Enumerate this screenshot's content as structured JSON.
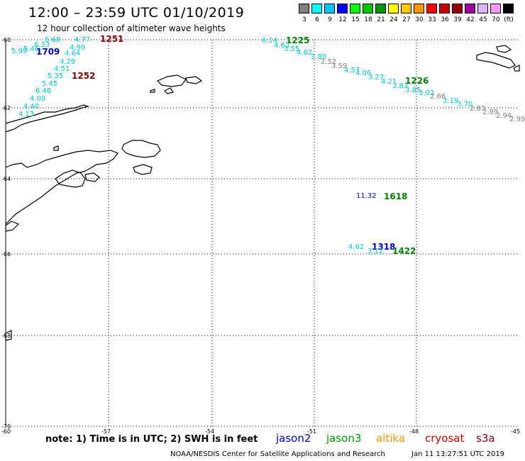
{
  "title": "12:00 – 23:59 UTC 01/10/2019",
  "subtitle": "12 hour collection of altimeter wave heights",
  "scale": {
    "colors": [
      "#808080",
      "#00ffff",
      "#00c8ff",
      "#0000ff",
      "#00ff00",
      "#00c800",
      "#009600",
      "#ffff00",
      "#ffc800",
      "#ff9600",
      "#ff0000",
      "#c80000",
      "#960000",
      "#a000a0",
      "#dcb4ff",
      "#ff96ff",
      "#000000"
    ],
    "labels": [
      "3",
      "6",
      "9",
      "12",
      "15",
      "18",
      "21",
      "24",
      "27",
      "30",
      "33",
      "36",
      "39",
      "42",
      "45",
      "70",
      "(ft)"
    ]
  },
  "axes": {
    "lat_labels": [
      "-60",
      "-62",
      "-64",
      "-66",
      "-68",
      "-70"
    ],
    "lon_labels": [
      "-60",
      "-57",
      "-54",
      "-51",
      "-48",
      "-45"
    ]
  },
  "tracks": [
    {
      "time": "1251",
      "color": "#800000",
      "points": [
        {
          "t": "6.68",
          "c": "#00c8c8"
        },
        {
          "t": "4.77",
          "c": "#00c8c8"
        },
        {
          "t": "6.33",
          "c": "#00c8c8"
        },
        {
          "t": "4.99",
          "c": "#00c8c8"
        },
        {
          "t": "5.99",
          "c": "#00c8c8"
        },
        {
          "t": "5.46",
          "c": "#00c8c8"
        },
        {
          "t": "4.64",
          "c": "#00c8c8"
        },
        {
          "t": "4.29",
          "c": "#00c8c8"
        },
        {
          "t": "4.51",
          "c": "#00c8c8"
        },
        {
          "t": "5.35",
          "c": "#00c8c8"
        },
        {
          "t": "5.45",
          "c": "#00c8c8"
        },
        {
          "t": "6.46",
          "c": "#00c8c8"
        },
        {
          "t": "4.09",
          "c": "#00c8c8"
        },
        {
          "t": "4.40",
          "c": "#00c8c8"
        },
        {
          "t": "4.13",
          "c": "#00c8c8"
        }
      ]
    },
    {
      "time": "1709",
      "color": "#0000c8",
      "points": []
    },
    {
      "time": "1252",
      "color": "#800000",
      "points": []
    },
    {
      "time": "1225",
      "color": "#008000",
      "points": [
        {
          "t": "6.14",
          "c": "#00c8c8"
        },
        {
          "t": "4.63",
          "c": "#00c8c8"
        },
        {
          "t": "3.55",
          "c": "#00c8c8"
        },
        {
          "t": "4.82",
          "c": "#00c8c8"
        },
        {
          "t": "3.80",
          "c": "#00c8c8"
        },
        {
          "t": "2.52",
          "c": "#808080"
        },
        {
          "t": "3.59",
          "c": "#808080"
        },
        {
          "t": "4.57",
          "c": "#00c8c8"
        },
        {
          "t": "4.06",
          "c": "#00c8c8"
        },
        {
          "t": "3.27",
          "c": "#00c8c8"
        },
        {
          "t": "4.21",
          "c": "#00c8c8"
        },
        {
          "t": "3.83",
          "c": "#00c8c8"
        },
        {
          "t": "3.85",
          "c": "#00c8c8"
        },
        {
          "t": "3.03",
          "c": "#00c8c8"
        },
        {
          "t": "2.66",
          "c": "#808080"
        },
        {
          "t": "3.19",
          "c": "#00c8c8"
        },
        {
          "t": "3.70",
          "c": "#00c8c8"
        },
        {
          "t": "2.83",
          "c": "#808080"
        },
        {
          "t": "2.89",
          "c": "#808080"
        },
        {
          "t": "2.94",
          "c": "#808080"
        },
        {
          "t": "2.99",
          "c": "#808080"
        }
      ]
    },
    {
      "time": "1226",
      "color": "#008000",
      "points": []
    },
    {
      "time": "1618",
      "color": "#008000",
      "points": [
        {
          "t": "11.32",
          "c": "#0000c8"
        }
      ]
    },
    {
      "time": "1318",
      "color": "#0000c8",
      "points": [
        {
          "t": "4.62",
          "c": "#00c8c8"
        },
        {
          "t": "3.12",
          "c": "#00c8c8"
        }
      ]
    },
    {
      "time": "1422",
      "color": "#008000",
      "points": []
    }
  ],
  "footer": {
    "note": "note:  1) Time is in UTC;  2) SWH is in feet",
    "legend": [
      {
        "name": "jason2",
        "color": "#0000c8"
      },
      {
        "name": "jason3",
        "color": "#009600"
      },
      {
        "name": "altika",
        "color": "#ff9600"
      },
      {
        "name": "cryosat",
        "color": "#c80000"
      },
      {
        "name": "s3a",
        "color": "#800000"
      }
    ],
    "credit": "NOAA/NESDIS Center for Satellite Applications and Research",
    "stamp": "Jan 11 13:27:51 UTC 2019"
  }
}
